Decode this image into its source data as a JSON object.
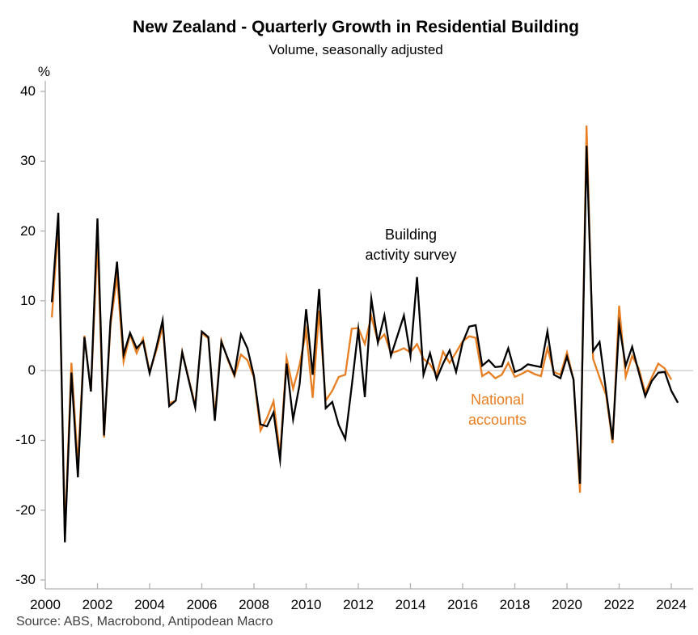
{
  "title": "New Zealand - Quarterly Growth in Residential Building",
  "subtitle": "Volume, seasonally adjusted",
  "y_axis_unit": "%",
  "source": "Source: ABS, Macrobond, Antipodean Macro",
  "annotations": {
    "survey_line1": "Building",
    "survey_line2": "activity survey",
    "accounts_line1": "National",
    "accounts_line2": "accounts"
  },
  "colors": {
    "survey_line": "#000000",
    "accounts_line": "#E87E22",
    "axis": "#b0b0b0",
    "zero_gridline": "#c8c8c8"
  },
  "chart_data": {
    "type": "line",
    "title": "New Zealand - Quarterly Growth in Residential Building",
    "subtitle": "Volume, seasonally adjusted",
    "frequency": "quarterly",
    "x_start": "2000Q1",
    "x_tick_labels": [
      "2000",
      "2002",
      "2004",
      "2006",
      "2008",
      "2010",
      "2012",
      "2014",
      "2016",
      "2018",
      "2020",
      "2022",
      "2024"
    ],
    "y_tick_labels": [
      "40",
      "30",
      "20",
      "10",
      "0",
      "-10",
      "-20",
      "-30"
    ],
    "y_ticks": [
      40,
      30,
      20,
      10,
      0,
      -10,
      -20,
      -30
    ],
    "ylim": [
      -30,
      40
    ],
    "grid": "zero-line-only",
    "legend_position": "inline-annotations",
    "series": [
      {
        "name": "Building activity survey",
        "color": "#000000",
        "values": [
          9.8,
          22.6,
          -24.6,
          -0.3,
          -15.3,
          4.8,
          -3.0,
          21.8,
          -9.3,
          7.1,
          15.6,
          2.3,
          5.4,
          3.2,
          4.2,
          -0.4,
          3.2,
          7.2,
          -5.1,
          -4.3,
          2.6,
          -1.4,
          -5.3,
          5.6,
          4.8,
          -7.2,
          4.1,
          1.7,
          -0.6,
          5.2,
          3.2,
          -0.8,
          -7.7,
          -8.0,
          -6.0,
          -12.8,
          1.0,
          -7.0,
          -2.0,
          8.8,
          -0.6,
          11.7,
          -5.4,
          -4.5,
          -7.8,
          -9.8,
          -2.2,
          5.9,
          -3.8,
          10.3,
          4.0,
          7.9,
          2.1,
          5.0,
          7.9,
          2.1,
          13.4,
          -0.6,
          2.5,
          -1.2,
          1.0,
          2.9,
          -0.2,
          4.0,
          6.3,
          6.5,
          0.7,
          1.5,
          0.5,
          0.6,
          3.2,
          -0.2,
          0.2,
          0.9,
          0.7,
          0.5,
          5.6,
          -0.6,
          -1.1,
          2.0,
          -1.3,
          -16.2,
          32.2,
          2.8,
          4.1,
          -3.0,
          -9.9,
          6.6,
          0.7,
          3.4,
          -0.2,
          -3.7,
          -1.5,
          -0.3,
          -0.2,
          -2.9,
          -4.6
        ]
      },
      {
        "name": "National accounts",
        "color": "#E87E22",
        "values": [
          7.6,
          21.0,
          -23.5,
          1.1,
          -13.5,
          5.0,
          -3.0,
          18.5,
          -9.6,
          6.5,
          13.5,
          1.3,
          5.2,
          2.5,
          4.6,
          -0.2,
          2.8,
          6.3,
          -4.7,
          -4.3,
          2.7,
          -1.2,
          -5.0,
          5.4,
          4.6,
          -6.6,
          4.3,
          1.5,
          -0.8,
          2.3,
          1.5,
          -1.0,
          -8.6,
          -6.8,
          -4.4,
          -12.0,
          1.8,
          -2.6,
          0.8,
          5.7,
          -3.9,
          8.6,
          -4.3,
          -2.9,
          -0.9,
          -0.6,
          6.0,
          6.1,
          3.8,
          7.8,
          4.2,
          5.2,
          2.5,
          2.8,
          3.2,
          2.6,
          3.8,
          1.7,
          0.9,
          -0.6,
          2.7,
          1.1,
          2.6,
          4.2,
          4.9,
          4.7,
          -0.8,
          -0.2,
          -1.1,
          -0.6,
          1.1,
          -0.9,
          -0.5,
          0.0,
          -0.5,
          -0.8,
          3.2,
          -0.2,
          -0.6,
          2.6,
          -1.3,
          -17.5,
          35.1,
          1.7,
          -1.0,
          -3.5,
          -10.4,
          9.3,
          -0.9,
          2.1,
          0.3,
          -3.2,
          -1.0,
          1.0,
          0.3,
          -1.3
        ]
      }
    ]
  }
}
